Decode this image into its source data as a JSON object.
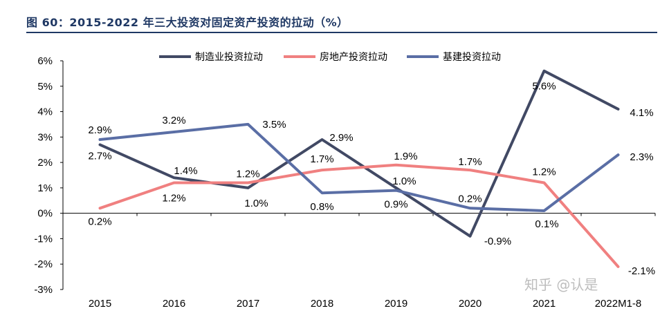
{
  "header": {
    "title": "图 60：2015-2022 年三大投资对固定资产投资的拉动（%）"
  },
  "watermark": "知乎 @认是",
  "chart_data": {
    "type": "line",
    "categories": [
      "2015",
      "2016",
      "2017",
      "2018",
      "2019",
      "2020",
      "2021",
      "2022M1-8"
    ],
    "ylim": [
      -3,
      6
    ],
    "yticks": [
      "-3%",
      "-2%",
      "-1%",
      "0%",
      "1%",
      "2%",
      "3%",
      "4%",
      "5%",
      "6%"
    ],
    "grid": false,
    "legend_position": "top",
    "series": [
      {
        "name": "制造业投资拉动",
        "color": "#414964",
        "values": [
          2.7,
          1.4,
          1.0,
          2.9,
          1.0,
          -0.9,
          5.6,
          4.1
        ],
        "labels": [
          "2.7%",
          "1.4%",
          "1.0%",
          "2.9%",
          "1.0%",
          "-0.9%",
          "5.6%",
          "4.1%"
        ]
      },
      {
        "name": "房地产投资拉动",
        "color": "#f08080",
        "values": [
          0.2,
          1.2,
          1.2,
          1.7,
          1.9,
          1.7,
          1.2,
          -2.1
        ],
        "labels": [
          "0.2%",
          "1.2%",
          "1.2%",
          "1.7%",
          "1.9%",
          "1.7%",
          "1.2%",
          "-2.1%"
        ]
      },
      {
        "name": "基建投资拉动",
        "color": "#5a6ea5",
        "values": [
          2.9,
          3.2,
          3.5,
          0.8,
          0.9,
          0.2,
          0.1,
          2.3
        ],
        "labels": [
          "2.9%",
          "3.2%",
          "3.5%",
          "0.8%",
          "0.9%",
          "0.2%",
          "0.1%",
          "2.3%"
        ]
      }
    ]
  }
}
